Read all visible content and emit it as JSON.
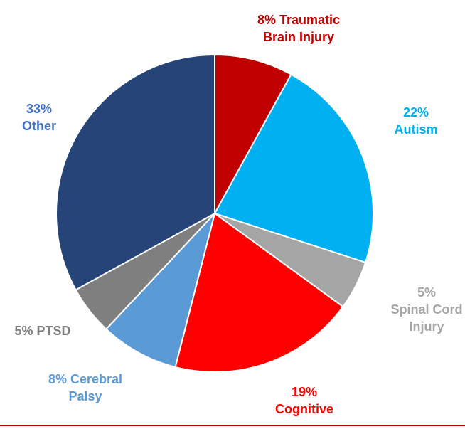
{
  "chart_data": {
    "type": "pie",
    "categories": [
      "Traumatic Brain Injury",
      "Autism",
      "Spinal Cord Injury",
      "Cognitive",
      "Cerebral Palsy",
      "PTSD",
      "Other"
    ],
    "values": [
      8,
      22,
      5,
      19,
      8,
      5,
      33
    ],
    "value_labels": [
      "8%",
      "22%",
      "5%",
      "19%",
      "8%",
      "5%",
      "33%"
    ],
    "colors": [
      "#c00000",
      "#00b0f0",
      "#a5a5a5",
      "#ff0000",
      "#5b9bd5",
      "#7f7f7f",
      "#264478"
    ],
    "label_colors": [
      "#c00000",
      "#00b0f0",
      "#a5a5a5",
      "#ff0000",
      "#5b9bd5",
      "#7f7f7f",
      "#4472c4"
    ]
  }
}
